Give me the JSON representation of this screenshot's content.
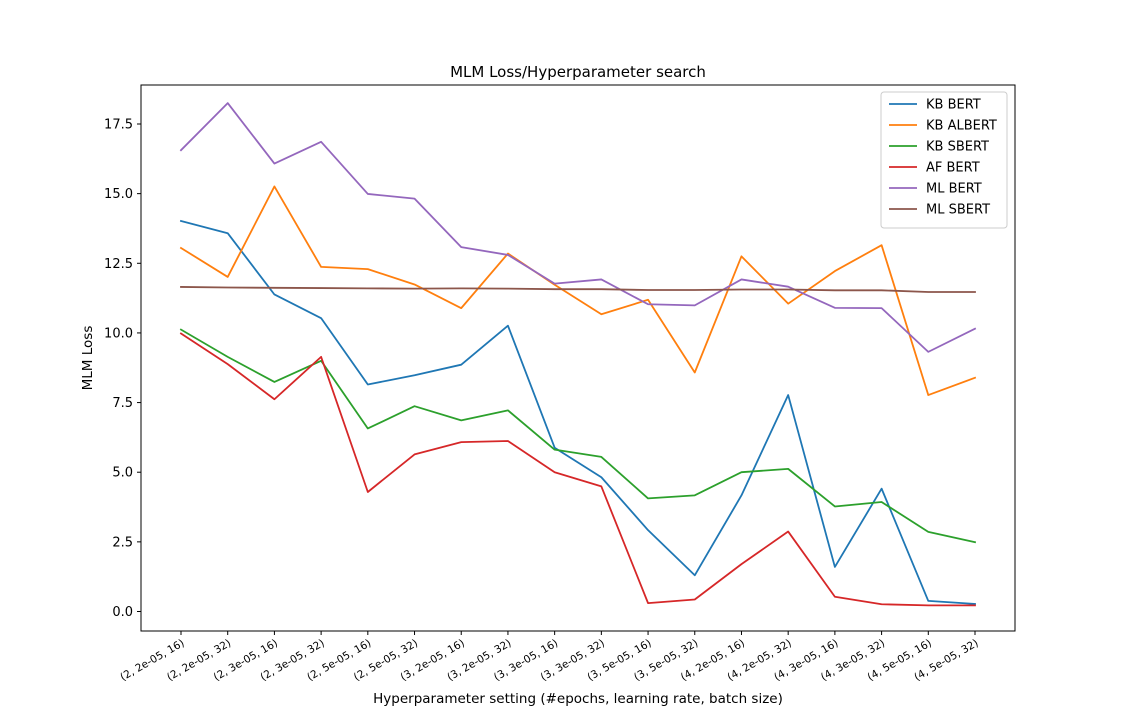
{
  "chart_data": {
    "type": "line",
    "title": "MLM Loss/Hyperparameter search",
    "xlabel": "Hyperparameter setting (#epochs, learning rate, batch size)",
    "ylabel": "MLM Loss",
    "ylim": [
      -0.7,
      18.9
    ],
    "yticks": [
      0.0,
      2.5,
      5.0,
      7.5,
      10.0,
      12.5,
      15.0,
      17.5
    ],
    "ytick_labels": [
      "0.0",
      "2.5",
      "5.0",
      "7.5",
      "10.0",
      "12.5",
      "15.0",
      "17.5"
    ],
    "grid": false,
    "legend_position": "top-right",
    "categories": [
      "(2, 2e-05, 16)",
      "(2, 2e-05, 32)",
      "(2, 3e-05, 16)",
      "(2, 3e-05, 32)",
      "(2, 5e-05, 16)",
      "(2, 5e-05, 32)",
      "(3, 2e-05, 16)",
      "(3, 2e-05, 32)",
      "(3, 3e-05, 16)",
      "(3, 3e-05, 32)",
      "(3, 5e-05, 16)",
      "(3, 5e-05, 32)",
      "(4, 2e-05, 16)",
      "(4, 2e-05, 32)",
      "(4, 3e-05, 16)",
      "(4, 3e-05, 32)",
      "(4, 5e-05, 16)",
      "(4, 5e-05, 32)"
    ],
    "series": [
      {
        "name": "KB BERT",
        "color": "#1f77b4",
        "values": [
          14.02,
          13.58,
          11.38,
          10.53,
          8.15,
          8.48,
          8.86,
          10.26,
          5.88,
          4.82,
          2.92,
          1.3,
          4.17,
          7.77,
          1.6,
          4.41,
          0.38,
          0.27
        ]
      },
      {
        "name": "KB ALBERT",
        "color": "#ff7f0e",
        "values": [
          13.05,
          12.01,
          15.26,
          12.37,
          12.29,
          11.74,
          10.89,
          12.85,
          11.73,
          10.67,
          11.19,
          8.58,
          12.75,
          11.05,
          12.22,
          13.15,
          7.77,
          8.39
        ]
      },
      {
        "name": "KB SBERT",
        "color": "#2ca02c",
        "values": [
          10.12,
          9.14,
          8.24,
          9.0,
          6.57,
          7.37,
          6.86,
          7.22,
          5.81,
          5.55,
          4.06,
          4.17,
          5.0,
          5.12,
          3.77,
          3.93,
          2.86,
          2.49
        ]
      },
      {
        "name": "AF BERT",
        "color": "#d62728",
        "values": [
          9.98,
          8.88,
          7.62,
          9.14,
          4.29,
          5.64,
          6.08,
          6.12,
          5.0,
          4.49,
          0.3,
          0.43,
          1.7,
          2.87,
          0.53,
          0.26,
          0.22,
          0.22
        ]
      },
      {
        "name": "ML BERT",
        "color": "#9467bd",
        "values": [
          16.56,
          18.25,
          16.08,
          16.86,
          14.99,
          14.82,
          13.08,
          12.8,
          11.77,
          11.92,
          11.03,
          10.99,
          11.92,
          11.66,
          10.9,
          10.89,
          9.32,
          10.15
        ]
      },
      {
        "name": "ML SBERT",
        "color": "#8c564b",
        "values": [
          11.65,
          11.63,
          11.62,
          11.61,
          11.6,
          11.59,
          11.6,
          11.59,
          11.57,
          11.57,
          11.54,
          11.54,
          11.56,
          11.56,
          11.53,
          11.53,
          11.47,
          11.47
        ]
      }
    ]
  }
}
